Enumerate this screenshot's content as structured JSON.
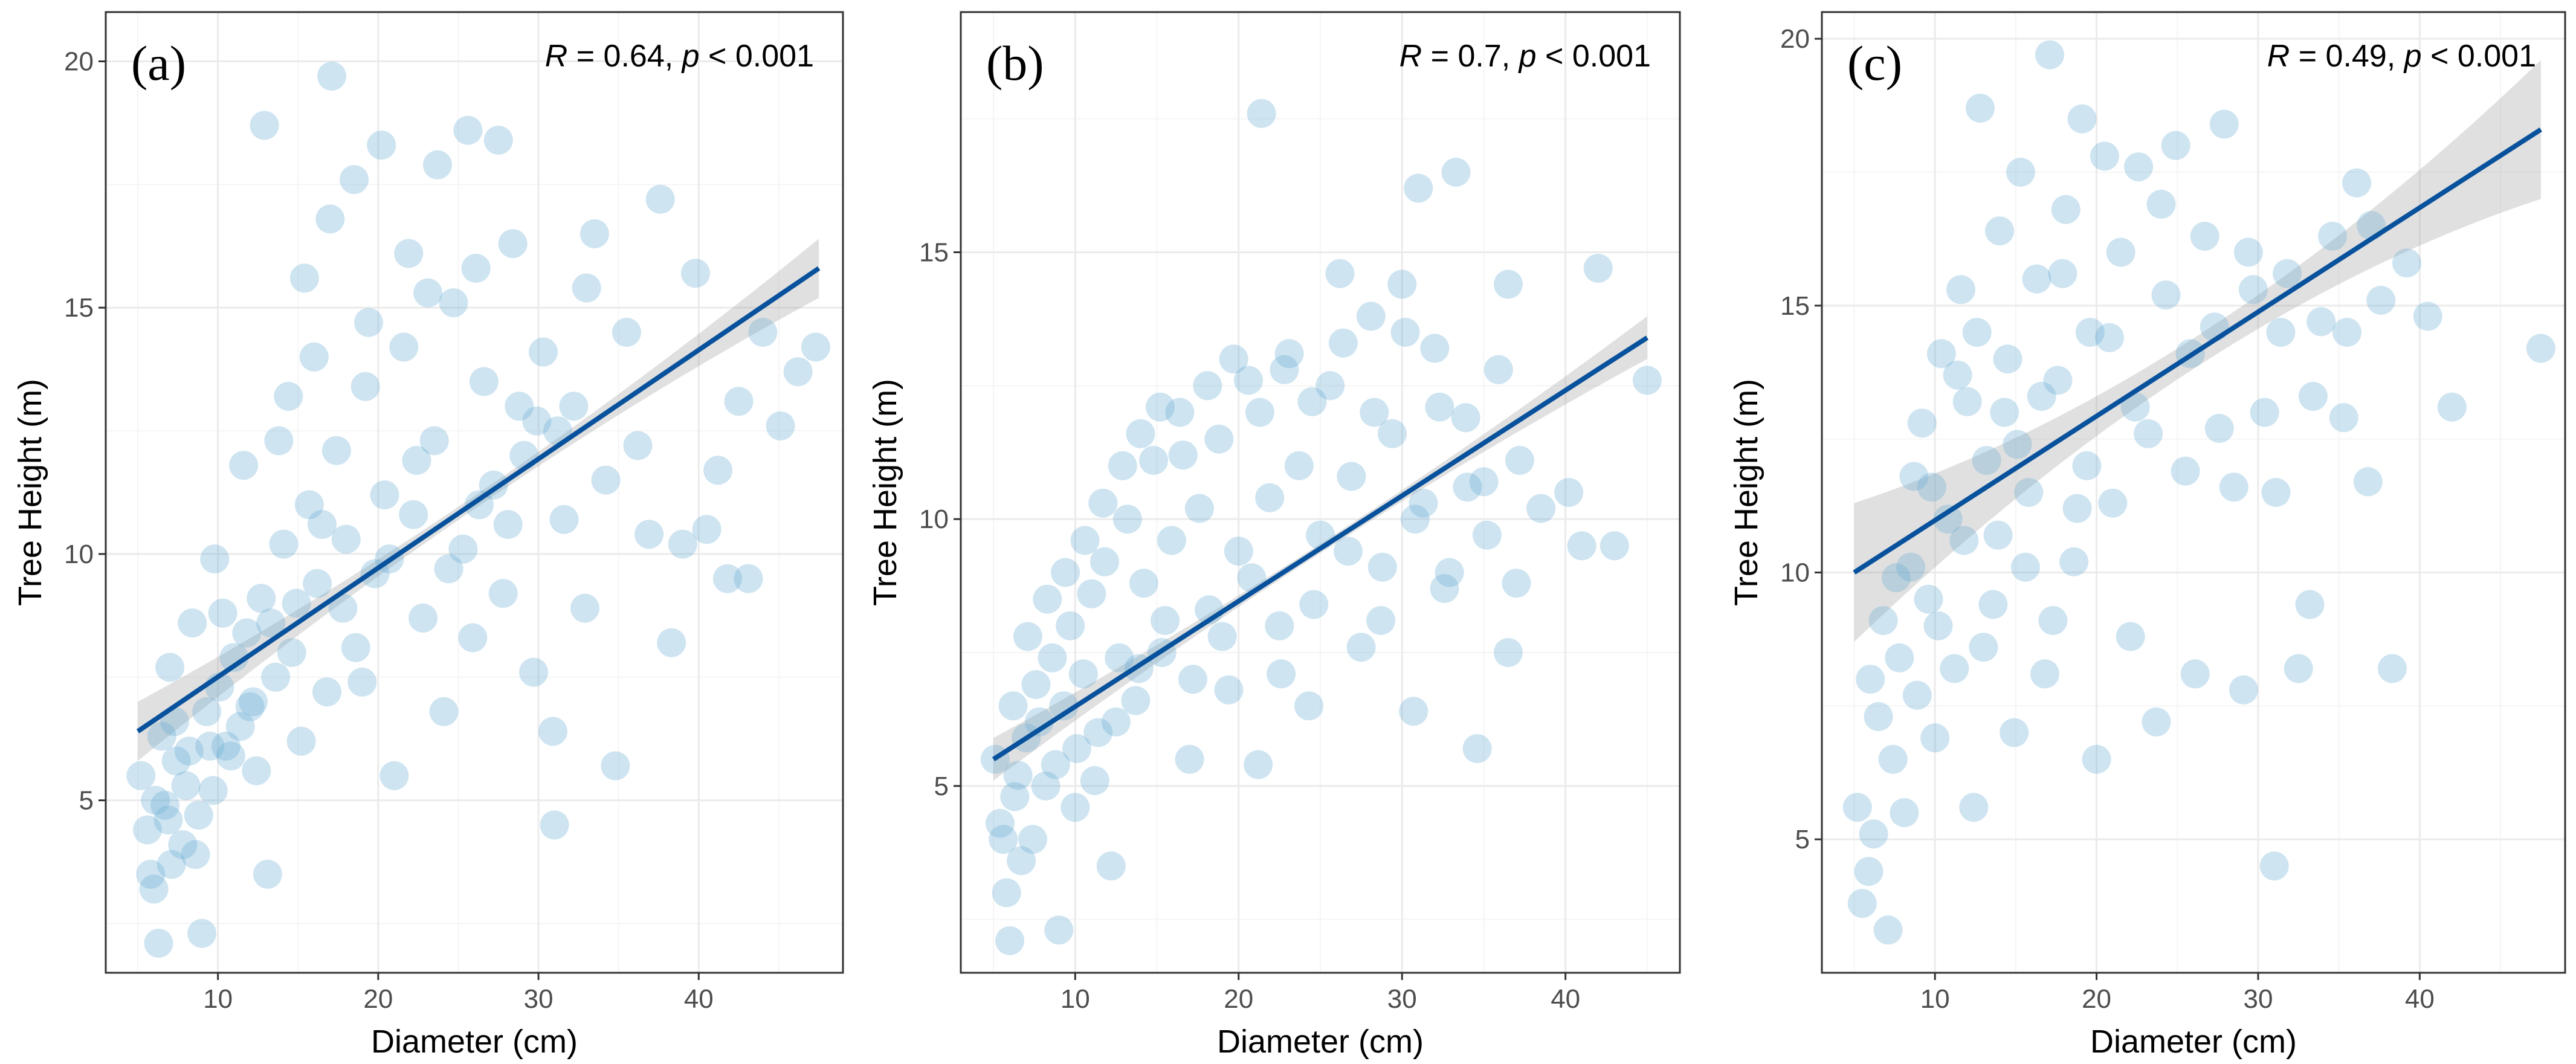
{
  "figure_title": "",
  "chart_data": [
    {
      "type": "scatter",
      "panel_label": "(a)",
      "annotation": {
        "r_symbol": "R",
        "r_value": "0.64",
        "p_symbol": "p",
        "p_text": "< 0.001"
      },
      "xlabel": "Diameter (cm)",
      "ylabel": "Tree Height (m)",
      "xlim": [
        3,
        49
      ],
      "ylim": [
        1.5,
        21
      ],
      "xticks": [
        10,
        20,
        30,
        40
      ],
      "xtick_labels": [
        "10",
        "20",
        "30",
        "40"
      ],
      "yticks": [
        5,
        10,
        15,
        20
      ],
      "ytick_labels": [
        "5",
        "10",
        "15",
        "20"
      ],
      "grid": true,
      "point_color": "#6baed6",
      "line_color": "#08519c",
      "band_color": "#999999",
      "regression": {
        "x1": 5,
        "y1": 6.4,
        "x2": 47.5,
        "y2": 15.8,
        "band_half_width_end": 0.6
      },
      "points": [
        [
          5.2,
          5.5
        ],
        [
          5.6,
          4.4
        ],
        [
          6.0,
          3.2
        ],
        [
          6.3,
          2.1
        ],
        [
          6.7,
          4.9
        ],
        [
          7.1,
          3.7
        ],
        [
          7.4,
          5.8
        ],
        [
          7.8,
          4.1
        ],
        [
          8.2,
          6.0
        ],
        [
          8.6,
          3.9
        ],
        [
          9.0,
          2.3
        ],
        [
          9.3,
          6.8
        ],
        [
          9.7,
          5.2
        ],
        [
          10.1,
          7.3
        ],
        [
          10.5,
          6.1
        ],
        [
          11.0,
          7.9
        ],
        [
          11.4,
          6.5
        ],
        [
          11.8,
          8.4
        ],
        [
          12.2,
          7.0
        ],
        [
          12.7,
          9.1
        ],
        [
          13.1,
          3.5
        ],
        [
          13.6,
          7.5
        ],
        [
          14.1,
          10.2
        ],
        [
          14.6,
          8.0
        ],
        [
          15.2,
          6.2
        ],
        [
          15.7,
          11.0
        ],
        [
          16.2,
          9.4
        ],
        [
          16.8,
          7.2
        ],
        [
          17.4,
          12.1
        ],
        [
          18.0,
          10.3
        ],
        [
          18.6,
          8.1
        ],
        [
          19.2,
          13.4
        ],
        [
          19.8,
          9.6
        ],
        [
          20.4,
          11.2
        ],
        [
          21.0,
          5.5
        ],
        [
          21.6,
          14.2
        ],
        [
          22.2,
          10.8
        ],
        [
          22.8,
          8.7
        ],
        [
          23.5,
          12.3
        ],
        [
          24.1,
          6.8
        ],
        [
          24.7,
          15.1
        ],
        [
          25.3,
          10.1
        ],
        [
          25.9,
          8.3
        ],
        [
          26.6,
          13.5
        ],
        [
          27.2,
          11.4
        ],
        [
          27.8,
          9.2
        ],
        [
          28.4,
          16.3
        ],
        [
          29.1,
          12.0
        ],
        [
          29.7,
          7.6
        ],
        [
          30.3,
          14.1
        ],
        [
          30.9,
          6.4
        ],
        [
          31.0,
          4.5
        ],
        [
          31.6,
          10.7
        ],
        [
          32.2,
          13.0
        ],
        [
          32.9,
          8.9
        ],
        [
          33.5,
          16.5
        ],
        [
          34.2,
          11.5
        ],
        [
          34.8,
          5.7
        ],
        [
          35.5,
          14.5
        ],
        [
          36.2,
          12.2
        ],
        [
          36.9,
          10.4
        ],
        [
          37.6,
          17.2
        ],
        [
          38.3,
          8.2
        ],
        [
          39.0,
          10.2
        ],
        [
          39.8,
          15.7
        ],
        [
          40.5,
          10.5
        ],
        [
          41.2,
          11.7
        ],
        [
          41.8,
          9.5
        ],
        [
          42.5,
          13.1
        ],
        [
          43.1,
          9.5
        ],
        [
          44.0,
          14.5
        ],
        [
          45.1,
          12.6
        ],
        [
          46.2,
          13.7
        ],
        [
          47.3,
          14.2
        ],
        [
          6.1,
          5.0
        ],
        [
          7.3,
          6.6
        ],
        [
          8.8,
          4.7
        ],
        [
          10.3,
          8.8
        ],
        [
          12.4,
          5.6
        ],
        [
          13.8,
          12.3
        ],
        [
          15.4,
          15.6
        ],
        [
          17.0,
          16.8
        ],
        [
          18.5,
          17.6
        ],
        [
          20.2,
          18.3
        ],
        [
          21.9,
          16.1
        ],
        [
          23.7,
          17.9
        ],
        [
          25.6,
          18.6
        ],
        [
          27.5,
          18.4
        ],
        [
          12.9,
          18.7
        ],
        [
          17.1,
          19.7
        ],
        [
          19.4,
          14.7
        ],
        [
          23.1,
          15.3
        ],
        [
          26.1,
          15.8
        ],
        [
          28.8,
          13.0
        ],
        [
          31.2,
          12.5
        ],
        [
          33.0,
          15.4
        ],
        [
          16.0,
          14.0
        ],
        [
          14.4,
          13.2
        ],
        [
          11.6,
          11.8
        ],
        [
          9.8,
          9.9
        ],
        [
          8.4,
          8.6
        ],
        [
          7.0,
          7.7
        ],
        [
          6.5,
          6.3
        ],
        [
          5.8,
          3.5
        ],
        [
          6.9,
          4.6
        ],
        [
          8.0,
          5.3
        ],
        [
          9.5,
          6.1
        ],
        [
          10.8,
          5.9
        ],
        [
          12.0,
          6.9
        ],
        [
          13.3,
          8.6
        ],
        [
          14.9,
          9.0
        ],
        [
          16.5,
          10.6
        ],
        [
          17.8,
          8.9
        ],
        [
          19.0,
          7.4
        ],
        [
          20.7,
          9.9
        ],
        [
          22.4,
          11.9
        ],
        [
          24.4,
          9.7
        ],
        [
          26.3,
          11.0
        ],
        [
          28.1,
          10.6
        ],
        [
          29.9,
          12.7
        ]
      ]
    },
    {
      "type": "scatter",
      "panel_label": "(b)",
      "annotation": {
        "r_symbol": "R",
        "r_value": "0.7",
        "p_symbol": "p",
        "p_text": "< 0.001"
      },
      "xlabel": "Diameter (cm)",
      "ylabel": "Tree Height (m)",
      "xlim": [
        3,
        47
      ],
      "ylim": [
        1.5,
        19.5
      ],
      "xticks": [
        10,
        20,
        30,
        40
      ],
      "xtick_labels": [
        "10",
        "20",
        "30",
        "40"
      ],
      "yticks": [
        5,
        10,
        15
      ],
      "ytick_labels": [
        "5",
        "10",
        "15"
      ],
      "grid": true,
      "point_color": "#6baed6",
      "line_color": "#08519c",
      "band_color": "#999999",
      "regression": {
        "x1": 5,
        "y1": 5.5,
        "x2": 45,
        "y2": 13.4,
        "band_half_width_end": 0.4
      },
      "points": [
        [
          5.1,
          5.5
        ],
        [
          5.4,
          4.3
        ],
        [
          5.8,
          3.0
        ],
        [
          6.0,
          2.1
        ],
        [
          6.3,
          4.8
        ],
        [
          6.7,
          3.6
        ],
        [
          7.0,
          5.9
        ],
        [
          7.4,
          4.0
        ],
        [
          7.8,
          6.2
        ],
        [
          8.2,
          5.0
        ],
        [
          8.6,
          7.4
        ],
        [
          9.0,
          2.3
        ],
        [
          9.3,
          6.5
        ],
        [
          9.7,
          8.0
        ],
        [
          10.1,
          5.7
        ],
        [
          10.5,
          7.1
        ],
        [
          11.0,
          8.6
        ],
        [
          11.4,
          6.0
        ],
        [
          11.8,
          9.2
        ],
        [
          12.2,
          3.5
        ],
        [
          12.7,
          7.4
        ],
        [
          13.2,
          10.0
        ],
        [
          13.7,
          6.6
        ],
        [
          14.2,
          8.8
        ],
        [
          14.8,
          11.1
        ],
        [
          15.3,
          7.5
        ],
        [
          15.9,
          9.6
        ],
        [
          16.4,
          12.0
        ],
        [
          17.0,
          5.5
        ],
        [
          17.6,
          10.2
        ],
        [
          18.2,
          8.3
        ],
        [
          18.8,
          11.5
        ],
        [
          19.4,
          6.8
        ],
        [
          20.0,
          9.4
        ],
        [
          20.6,
          12.6
        ],
        [
          21.2,
          5.4
        ],
        [
          21.4,
          17.6
        ],
        [
          21.9,
          10.4
        ],
        [
          22.5,
          8.0
        ],
        [
          23.1,
          13.1
        ],
        [
          23.7,
          11.0
        ],
        [
          24.3,
          6.5
        ],
        [
          25.0,
          9.7
        ],
        [
          25.6,
          12.5
        ],
        [
          26.2,
          14.6
        ],
        [
          26.9,
          10.8
        ],
        [
          27.5,
          7.6
        ],
        [
          28.1,
          13.8
        ],
        [
          28.8,
          9.1
        ],
        [
          29.4,
          11.6
        ],
        [
          30.0,
          14.4
        ],
        [
          30.7,
          6.4
        ],
        [
          31.3,
          10.3
        ],
        [
          31.0,
          16.2
        ],
        [
          32.0,
          13.2
        ],
        [
          32.6,
          8.7
        ],
        [
          33.3,
          16.5
        ],
        [
          33.9,
          11.9
        ],
        [
          34.6,
          5.7
        ],
        [
          35.2,
          9.7
        ],
        [
          35.9,
          12.8
        ],
        [
          36.5,
          14.4
        ],
        [
          36.5,
          7.5
        ],
        [
          37.2,
          11.1
        ],
        [
          38.5,
          10.2
        ],
        [
          40.2,
          10.5
        ],
        [
          41.0,
          9.5
        ],
        [
          42.0,
          14.7
        ],
        [
          43.0,
          9.5
        ],
        [
          45.0,
          12.6
        ],
        [
          6.2,
          6.5
        ],
        [
          7.1,
          7.8
        ],
        [
          8.3,
          8.5
        ],
        [
          9.4,
          9.0
        ],
        [
          10.6,
          9.6
        ],
        [
          11.7,
          10.3
        ],
        [
          12.9,
          11.0
        ],
        [
          14.0,
          11.6
        ],
        [
          15.2,
          12.1
        ],
        [
          16.6,
          11.2
        ],
        [
          18.1,
          12.5
        ],
        [
          19.7,
          13.0
        ],
        [
          21.3,
          12.0
        ],
        [
          22.8,
          12.8
        ],
        [
          24.5,
          12.2
        ],
        [
          26.4,
          13.3
        ],
        [
          28.3,
          12.0
        ],
        [
          30.2,
          13.5
        ],
        [
          32.3,
          12.1
        ],
        [
          34.0,
          10.6
        ],
        [
          5.6,
          4.0
        ],
        [
          6.5,
          5.2
        ],
        [
          7.6,
          6.9
        ],
        [
          8.8,
          5.4
        ],
        [
          10.0,
          4.6
        ],
        [
          11.2,
          5.1
        ],
        [
          12.5,
          6.2
        ],
        [
          13.9,
          7.2
        ],
        [
          15.5,
          8.1
        ],
        [
          17.2,
          7.0
        ],
        [
          19.0,
          7.8
        ],
        [
          20.8,
          8.9
        ],
        [
          22.6,
          7.1
        ],
        [
          24.6,
          8.4
        ],
        [
          26.7,
          9.4
        ],
        [
          28.7,
          8.1
        ],
        [
          30.8,
          10.0
        ],
        [
          32.9,
          9.0
        ],
        [
          35.0,
          10.7
        ],
        [
          37.0,
          8.8
        ]
      ]
    },
    {
      "type": "scatter",
      "panel_label": "(c)",
      "annotation": {
        "r_symbol": "R",
        "r_value": "0.49",
        "p_symbol": "p",
        "p_text": "< 0.001"
      },
      "xlabel": "Diameter (cm)",
      "ylabel": "Tree Height (m)",
      "xlim": [
        3,
        49
      ],
      "ylim": [
        2.5,
        20.5
      ],
      "xticks": [
        10,
        20,
        30,
        40
      ],
      "xtick_labels": [
        "10",
        "20",
        "30",
        "40"
      ],
      "yticks": [
        5,
        10,
        15,
        20
      ],
      "ytick_labels": [
        "5",
        "10",
        "15",
        "20"
      ],
      "grid": true,
      "point_color": "#6baed6",
      "line_color": "#08519c",
      "band_color": "#999999",
      "regression": {
        "x1": 5,
        "y1": 10.0,
        "x2": 47.5,
        "y2": 18.3,
        "band_half_width_end": 1.3
      },
      "points": [
        [
          5.2,
          5.6
        ],
        [
          5.5,
          3.8
        ],
        [
          5.9,
          4.4
        ],
        [
          6.2,
          5.1
        ],
        [
          6.5,
          7.3
        ],
        [
          6.8,
          9.1
        ],
        [
          7.1,
          3.3
        ],
        [
          7.4,
          6.5
        ],
        [
          7.8,
          8.4
        ],
        [
          8.1,
          5.5
        ],
        [
          8.5,
          10.1
        ],
        [
          8.9,
          7.7
        ],
        [
          9.2,
          12.8
        ],
        [
          9.6,
          9.5
        ],
        [
          10.0,
          6.9
        ],
        [
          10.4,
          14.1
        ],
        [
          10.8,
          11.0
        ],
        [
          11.2,
          8.2
        ],
        [
          11.6,
          15.3
        ],
        [
          12.0,
          13.2
        ],
        [
          12.4,
          5.6
        ],
        [
          12.8,
          18.7
        ],
        [
          13.2,
          12.1
        ],
        [
          13.6,
          9.4
        ],
        [
          14.0,
          16.4
        ],
        [
          14.5,
          14.0
        ],
        [
          14.9,
          7.0
        ],
        [
          15.3,
          17.5
        ],
        [
          15.8,
          11.5
        ],
        [
          16.3,
          15.5
        ],
        [
          16.8,
          8.1
        ],
        [
          17.1,
          19.7
        ],
        [
          17.6,
          13.6
        ],
        [
          18.1,
          16.8
        ],
        [
          18.6,
          10.2
        ],
        [
          19.1,
          18.5
        ],
        [
          19.6,
          14.5
        ],
        [
          20.0,
          6.5
        ],
        [
          20.5,
          17.8
        ],
        [
          21.0,
          11.3
        ],
        [
          21.5,
          16.0
        ],
        [
          22.1,
          8.8
        ],
        [
          22.6,
          17.6
        ],
        [
          23.2,
          12.6
        ],
        [
          23.7,
          7.2
        ],
        [
          24.3,
          15.2
        ],
        [
          24.9,
          18.0
        ],
        [
          25.5,
          11.9
        ],
        [
          26.1,
          8.1
        ],
        [
          26.7,
          16.3
        ],
        [
          27.3,
          14.6
        ],
        [
          27.9,
          18.4
        ],
        [
          28.5,
          11.6
        ],
        [
          29.1,
          7.8
        ],
        [
          29.7,
          15.3
        ],
        [
          30.4,
          13.0
        ],
        [
          31.0,
          4.5
        ],
        [
          31.1,
          11.5
        ],
        [
          31.8,
          15.6
        ],
        [
          32.5,
          8.2
        ],
        [
          33.2,
          9.4
        ],
        [
          33.9,
          14.7
        ],
        [
          34.6,
          16.3
        ],
        [
          35.3,
          12.9
        ],
        [
          36.1,
          17.3
        ],
        [
          36.8,
          11.7
        ],
        [
          37.6,
          15.1
        ],
        [
          38.3,
          8.2
        ],
        [
          39.2,
          15.8
        ],
        [
          40.5,
          14.8
        ],
        [
          42.0,
          13.1
        ],
        [
          47.5,
          14.2
        ],
        [
          9.8,
          11.6
        ],
        [
          11.4,
          13.7
        ],
        [
          12.6,
          14.5
        ],
        [
          13.9,
          10.7
        ],
        [
          15.1,
          12.4
        ],
        [
          16.6,
          13.3
        ],
        [
          17.9,
          15.6
        ],
        [
          19.4,
          12.0
        ],
        [
          20.8,
          14.4
        ],
        [
          22.4,
          13.1
        ],
        [
          24.0,
          16.9
        ],
        [
          25.8,
          14.1
        ],
        [
          27.6,
          12.7
        ],
        [
          29.4,
          16.0
        ],
        [
          31.4,
          14.5
        ],
        [
          33.4,
          13.3
        ],
        [
          35.5,
          14.5
        ],
        [
          37.0,
          16.5
        ],
        [
          6.0,
          8.0
        ],
        [
          7.6,
          9.9
        ],
        [
          8.7,
          11.8
        ],
        [
          10.2,
          9.0
        ],
        [
          11.8,
          10.6
        ],
        [
          13.0,
          8.6
        ],
        [
          14.3,
          13.0
        ],
        [
          15.6,
          10.1
        ],
        [
          17.3,
          9.1
        ],
        [
          18.8,
          11.2
        ]
      ]
    }
  ]
}
